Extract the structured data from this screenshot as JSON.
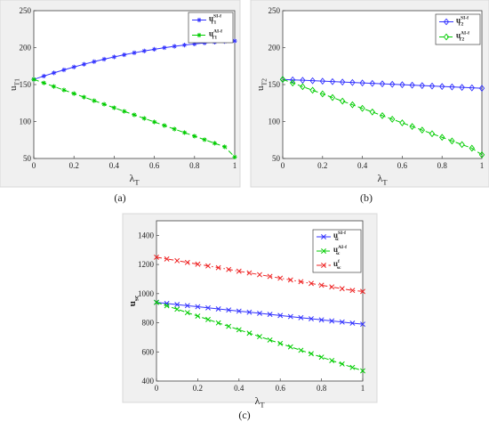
{
  "figure": {
    "captions": [
      "(a)",
      "(b)",
      "(c)"
    ]
  },
  "chart_data": [
    {
      "type": "line",
      "panel": "a",
      "xlabel": "λ",
      "xlabel_sub": "T",
      "ylabel": "u",
      "ylabel_sub": "T1",
      "xlim": [
        0,
        1
      ],
      "ylim": [
        50,
        250
      ],
      "xticks": [
        0,
        0.2,
        0.4,
        0.6,
        0.8,
        1
      ],
      "xtick_labels": [
        "0",
        "0.2",
        "0.4",
        "0.6",
        "0.8",
        "1"
      ],
      "yticks": [
        50,
        100,
        150,
        200,
        250
      ],
      "ytick_labels": [
        "50",
        "100",
        "150",
        "200",
        "250"
      ],
      "grid": false,
      "legend": "top-right",
      "x": [
        0,
        0.05,
        0.1,
        0.15,
        0.2,
        0.25,
        0.3,
        0.35,
        0.4,
        0.45,
        0.5,
        0.55,
        0.6,
        0.65,
        0.7,
        0.75,
        0.8,
        0.85,
        0.9,
        0.95,
        1
      ],
      "series": [
        {
          "name": "u",
          "name_sub": "T1",
          "name_sup": "SI-f",
          "color": "#3333ff",
          "marker": "star",
          "dash": "solid",
          "values": [
            157,
            161.5,
            165.8,
            169.9,
            173.8,
            177.5,
            181,
            184.3,
            187.4,
            190.3,
            193,
            195.5,
            197.8,
            199.9,
            201.8,
            203.5,
            205,
            206.3,
            207.4,
            208.3,
            209
          ]
        },
        {
          "name": "u",
          "name_sub": "T1",
          "name_sup": "AI-f",
          "color": "#00cc00",
          "marker": "star",
          "dash": "dashed",
          "values": [
            157,
            152.2,
            147.4,
            142.6,
            137.8,
            133,
            128.2,
            123.4,
            118.6,
            113.8,
            109,
            104.2,
            99.4,
            94.6,
            89.8,
            85,
            80.2,
            75.4,
            70.6,
            65.8,
            52
          ]
        }
      ]
    },
    {
      "type": "line",
      "panel": "b",
      "xlabel": "λ",
      "xlabel_sub": "T",
      "ylabel": "u",
      "ylabel_sub": "T2",
      "xlim": [
        0,
        1
      ],
      "ylim": [
        50,
        250
      ],
      "xticks": [
        0,
        0.2,
        0.4,
        0.6,
        0.8,
        1
      ],
      "xtick_labels": [
        "0",
        "0.2",
        "0.4",
        "0.6",
        "0.8",
        "1"
      ],
      "yticks": [
        50,
        100,
        150,
        200,
        250
      ],
      "ytick_labels": [
        "50",
        "100",
        "150",
        "200",
        "250"
      ],
      "grid": false,
      "legend": "top-right",
      "x": [
        0,
        0.05,
        0.1,
        0.15,
        0.2,
        0.25,
        0.3,
        0.35,
        0.4,
        0.45,
        0.5,
        0.55,
        0.6,
        0.65,
        0.7,
        0.75,
        0.8,
        0.85,
        0.9,
        0.95,
        1
      ],
      "series": [
        {
          "name": "u",
          "name_sub": "T2",
          "name_sup": "SI-f",
          "color": "#3333ff",
          "marker": "diamond",
          "dash": "solid",
          "values": [
            157,
            156.4,
            155.8,
            155.2,
            154.6,
            154,
            153.4,
            152.8,
            152.2,
            151.6,
            151,
            150.4,
            149.8,
            149.2,
            148.6,
            148,
            147.4,
            146.8,
            146.2,
            145.6,
            145
          ]
        },
        {
          "name": "u",
          "name_sub": "T2",
          "name_sup": "AI-f",
          "color": "#00cc00",
          "marker": "diamond",
          "dash": "dashed",
          "values": [
            157,
            152.1,
            147.2,
            142.3,
            137.4,
            132.5,
            127.6,
            122.7,
            117.8,
            112.9,
            108,
            103.1,
            98.2,
            93.3,
            88.4,
            83.5,
            78.6,
            73.7,
            68.8,
            63.9,
            55
          ]
        }
      ]
    },
    {
      "type": "line",
      "panel": "c",
      "xlabel": "λ",
      "xlabel_sub": "T",
      "ylabel": "u",
      "ylabel_sub": "sc",
      "xlim": [
        0,
        1
      ],
      "ylim": [
        400,
        1500
      ],
      "xticks": [
        0,
        0.2,
        0.4,
        0.6,
        0.8,
        1
      ],
      "xtick_labels": [
        "0",
        "0.2",
        "0.4",
        "0.6",
        "0.8",
        "1"
      ],
      "yticks": [
        400,
        600,
        800,
        1000,
        1200,
        1400
      ],
      "ytick_labels": [
        "400",
        "600",
        "800",
        "1000",
        "1200",
        "1400"
      ],
      "grid": false,
      "legend": "top-right",
      "x": [
        0,
        0.05,
        0.1,
        0.15,
        0.2,
        0.25,
        0.3,
        0.35,
        0.4,
        0.45,
        0.5,
        0.55,
        0.6,
        0.65,
        0.7,
        0.75,
        0.8,
        0.85,
        0.9,
        0.95,
        1
      ],
      "series": [
        {
          "name": "u",
          "name_sub": "sc",
          "name_sup": "SI-f",
          "color": "#3333ff",
          "marker": "x",
          "dash": "solid",
          "values": [
            940,
            932.5,
            925,
            917.5,
            910,
            902.5,
            895,
            887.5,
            880,
            872.5,
            865,
            857.5,
            850,
            842.5,
            835,
            827.5,
            820,
            812.5,
            805,
            797.5,
            790
          ]
        },
        {
          "name": "u",
          "name_sub": "sc",
          "name_sup": "AI-f",
          "color": "#00cc00",
          "marker": "x",
          "dash": "dashed",
          "values": [
            940,
            916.5,
            893,
            869.5,
            846,
            822.5,
            799,
            775.5,
            752,
            728.5,
            705,
            681.5,
            658,
            634.5,
            611,
            587.5,
            564,
            540.5,
            517,
            493.5,
            470
          ]
        },
        {
          "name": "u",
          "name_sub": "sc",
          "name_sup": "f",
          "color": "#ee2222",
          "marker": "x",
          "dash": "dashdot",
          "values": [
            1250,
            1238,
            1226,
            1214,
            1202,
            1190,
            1178,
            1166,
            1154,
            1142,
            1130,
            1118,
            1106,
            1094,
            1082,
            1070,
            1058,
            1046,
            1034,
            1022,
            1015
          ]
        }
      ]
    }
  ]
}
